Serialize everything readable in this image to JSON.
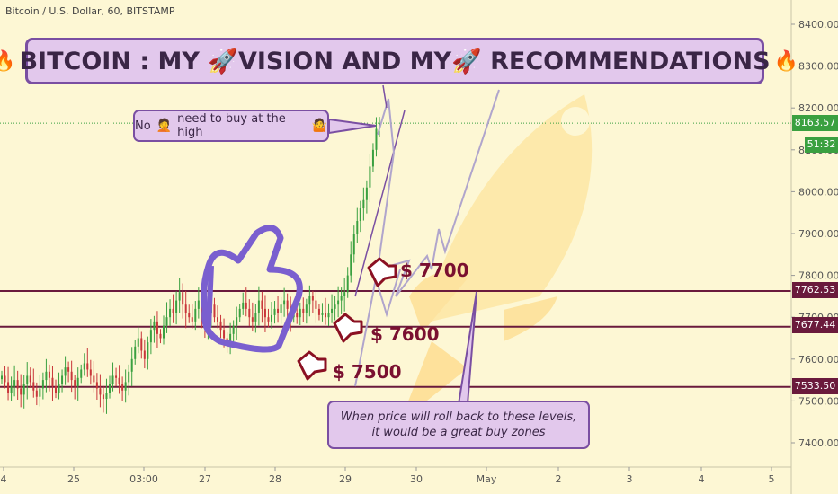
{
  "symbol": "Bitcoin / U.S. Dollar, 60, BITSTAMP",
  "banner": {
    "text": "BITCOIN : MY 🚀VISION AND MY🚀 RECOMMENDATIONS",
    "left_icon": "fire",
    "right_icon": "fire"
  },
  "callouts": {
    "high": {
      "prefix": "No",
      "text": "need to buy at the high"
    },
    "buy_zone": {
      "line1": "When price will roll back to these levels,",
      "line2": "it would be a great buy zones"
    }
  },
  "targets": [
    "$ 7700",
    "$ 7600",
    "$ 7500"
  ],
  "price_tags": {
    "current": "8163.57",
    "countdown": "51:32",
    "levels": [
      "7762.53",
      "7677.44",
      "7533.50"
    ]
  },
  "colors": {
    "background": "#fdf7d4",
    "level_line": "#6a1a3c",
    "banner_fill": "#e2c8ec",
    "banner_border": "#7a4fa2",
    "candle_up": "#3aa040",
    "candle_down": "#c8363a",
    "target_text": "#7a1030"
  },
  "chart_data": {
    "type": "candlestick",
    "y_axis": {
      "ticks": [
        "8400.00",
        "8300.00",
        "8200.00",
        "8100.00",
        "8000.00",
        "7900.00",
        "7800.00",
        "7700.00",
        "7600.00",
        "7500.00",
        "7400.00"
      ],
      "range": [
        7370,
        8450
      ]
    },
    "x_axis": {
      "labels": [
        "4",
        "25",
        "03:00",
        "27",
        "28",
        "29",
        "30",
        "May",
        "2",
        "3",
        "4",
        "5"
      ]
    },
    "levels": [
      7762.53,
      7677.44,
      7533.5
    ],
    "current_price": 8163.57,
    "candles_close": [
      7560,
      7545,
      7520,
      7535,
      7550,
      7530,
      7515,
      7540,
      7560,
      7545,
      7525,
      7510,
      7530,
      7550,
      7570,
      7555,
      7535,
      7520,
      7540,
      7560,
      7580,
      7570,
      7550,
      7535,
      7555,
      7575,
      7590,
      7575,
      7560,
      7545,
      7530,
      7515,
      7505,
      7520,
      7540,
      7560,
      7555,
      7540,
      7525,
      7545,
      7570,
      7600,
      7630,
      7650,
      7620,
      7600,
      7640,
      7670,
      7690,
      7660,
      7650,
      7680,
      7700,
      7720,
      7710,
      7740,
      7760,
      7730,
      7710,
      7700,
      7690,
      7720,
      7740,
      7700,
      7680,
      7710,
      7730,
      7700,
      7690,
      7670,
      7650,
      7640,
      7660,
      7680,
      7700,
      7720,
      7735,
      7720,
      7700,
      7690,
      7710,
      7740,
      7720,
      7700,
      7690,
      7705,
      7720,
      7710,
      7730,
      7740,
      7720,
      7700,
      7710,
      7700,
      7720,
      7710,
      7730,
      7750,
      7740,
      7720,
      7705,
      7710,
      7700,
      7710,
      7720,
      7730,
      7740,
      7750,
      7760,
      7800,
      7850,
      7900,
      7930,
      7960,
      7980,
      8010,
      8060,
      8100,
      8150,
      8163.57
    ]
  }
}
